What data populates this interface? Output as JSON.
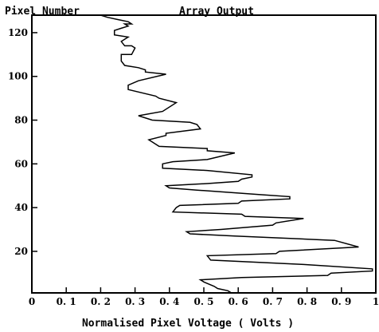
{
  "chart_data": {
    "type": "line",
    "title": "Array Output",
    "ylabel": "Pixel Number",
    "xlabel": "Normalised Pixel Voltage ( Volts )",
    "xlim": [
      0,
      1
    ],
    "ylim": [
      1,
      128
    ],
    "x_ticks": [
      0,
      0.1,
      0.2,
      0.3,
      0.4,
      0.5,
      0.6,
      0.7,
      0.8,
      0.9,
      1
    ],
    "x_tick_labels": [
      "0",
      "0. 1",
      "0. 2",
      "0. 3",
      "0. 4",
      "0. 5",
      "0. 6",
      "0. 7",
      "0. 8",
      "0. 9",
      "1"
    ],
    "y_ticks": [
      20,
      40,
      60,
      80,
      100,
      120
    ],
    "y_tick_labels": [
      "20",
      "40",
      "60",
      "80",
      "100",
      "120"
    ],
    "grid": false,
    "series": [
      {
        "color": "#000000",
        "points": [
          [
            0.58,
            1
          ],
          [
            0.57,
            2
          ],
          [
            0.54,
            3
          ],
          [
            0.53,
            4
          ],
          [
            0.5,
            6
          ],
          [
            0.49,
            7
          ],
          [
            0.61,
            8
          ],
          [
            0.86,
            9
          ],
          [
            0.87,
            10
          ],
          [
            0.99,
            11
          ],
          [
            0.99,
            12
          ],
          [
            0.79,
            14
          ],
          [
            0.52,
            16
          ],
          [
            0.51,
            18
          ],
          [
            0.71,
            19
          ],
          [
            0.72,
            20
          ],
          [
            0.95,
            22
          ],
          [
            0.88,
            25
          ],
          [
            0.59,
            27
          ],
          [
            0.46,
            28
          ],
          [
            0.45,
            29
          ],
          [
            0.55,
            30
          ],
          [
            0.7,
            32
          ],
          [
            0.71,
            33
          ],
          [
            0.79,
            35
          ],
          [
            0.62,
            36
          ],
          [
            0.61,
            37
          ],
          [
            0.41,
            38
          ],
          [
            0.42,
            40
          ],
          [
            0.43,
            41
          ],
          [
            0.6,
            42
          ],
          [
            0.61,
            43
          ],
          [
            0.75,
            44
          ],
          [
            0.75,
            45
          ],
          [
            0.66,
            46
          ],
          [
            0.48,
            48
          ],
          [
            0.4,
            49
          ],
          [
            0.39,
            50
          ],
          [
            0.51,
            51
          ],
          [
            0.6,
            52
          ],
          [
            0.61,
            53
          ],
          [
            0.64,
            54
          ],
          [
            0.64,
            55
          ],
          [
            0.51,
            57
          ],
          [
            0.38,
            58
          ],
          [
            0.38,
            60
          ],
          [
            0.41,
            61
          ],
          [
            0.51,
            62
          ],
          [
            0.59,
            65
          ],
          [
            0.51,
            66
          ],
          [
            0.51,
            67
          ],
          [
            0.37,
            68
          ],
          [
            0.35,
            70
          ],
          [
            0.34,
            71
          ],
          [
            0.39,
            73
          ],
          [
            0.39,
            74
          ],
          [
            0.49,
            76
          ],
          [
            0.48,
            78
          ],
          [
            0.46,
            79
          ],
          [
            0.35,
            80
          ],
          [
            0.31,
            82
          ],
          [
            0.38,
            84
          ],
          [
            0.42,
            88
          ],
          [
            0.37,
            90
          ],
          [
            0.36,
            91
          ],
          [
            0.28,
            94
          ],
          [
            0.28,
            96
          ],
          [
            0.31,
            98
          ],
          [
            0.39,
            101
          ],
          [
            0.33,
            102
          ],
          [
            0.33,
            103
          ],
          [
            0.31,
            104
          ],
          [
            0.27,
            105
          ],
          [
            0.26,
            107
          ],
          [
            0.26,
            110
          ],
          [
            0.29,
            110
          ],
          [
            0.3,
            113
          ],
          [
            0.29,
            114
          ],
          [
            0.27,
            114
          ],
          [
            0.26,
            116
          ],
          [
            0.28,
            118
          ],
          [
            0.24,
            119
          ],
          [
            0.24,
            121
          ],
          [
            0.26,
            122
          ],
          [
            0.28,
            123
          ],
          [
            0.27,
            124
          ],
          [
            0.29,
            124
          ],
          [
            0.28,
            125
          ],
          [
            0.25,
            126
          ],
          [
            0.22,
            127
          ],
          [
            0.2,
            128
          ]
        ]
      }
    ]
  }
}
